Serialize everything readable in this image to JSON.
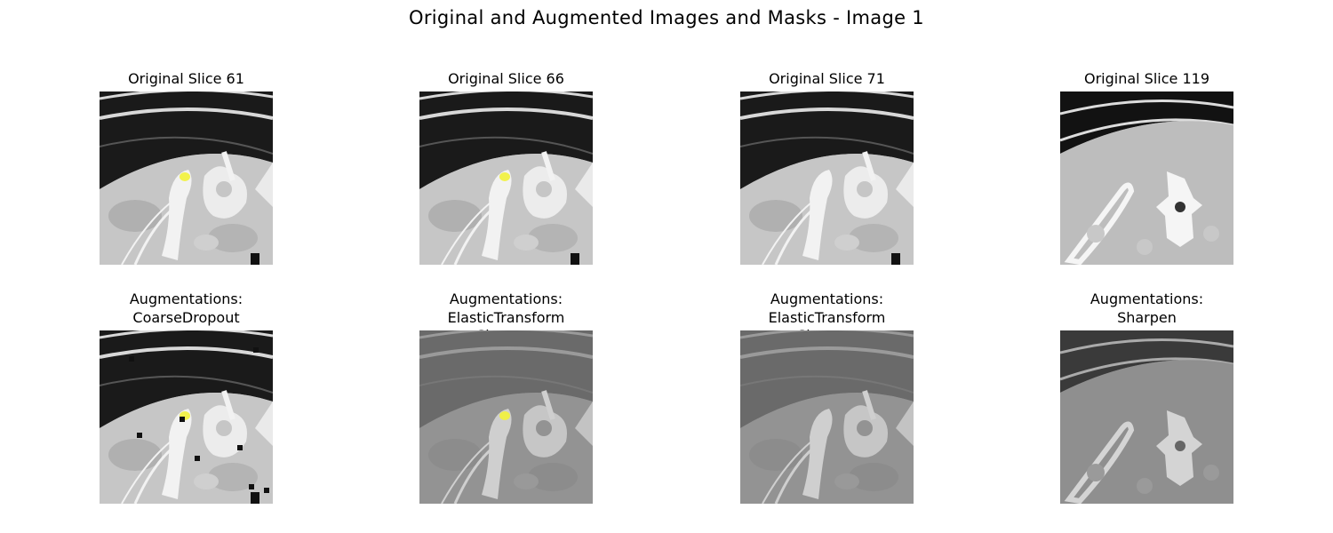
{
  "figure": {
    "title": "Original and Augmented Images and Masks - Image 1"
  },
  "colors": {
    "mask": "#f2f23a",
    "background": "#ffffff"
  },
  "panels": [
    {
      "title": "Original Slice 61",
      "row": "original",
      "variant": "bone",
      "mask": true,
      "dropout": false,
      "tone": "normal"
    },
    {
      "title": "Original Slice 66",
      "row": "original",
      "variant": "bone",
      "mask": true,
      "dropout": false,
      "tone": "normal"
    },
    {
      "title": "Original Slice 71",
      "row": "original",
      "variant": "bone",
      "mask": false,
      "dropout": false,
      "tone": "normal"
    },
    {
      "title": "Original Slice 119",
      "row": "original",
      "variant": "pelvis",
      "mask": false,
      "dropout": false,
      "tone": "normal"
    },
    {
      "title": "Augmentations:\nCoarseDropout",
      "row": "augmented",
      "variant": "bone",
      "mask": true,
      "dropout": true,
      "tone": "normal"
    },
    {
      "title": "Augmentations:\nElasticTransform\nSharpen",
      "row": "augmented",
      "variant": "bone",
      "mask": true,
      "dropout": false,
      "tone": "gray"
    },
    {
      "title": "Augmentations:\nElasticTransform\nSharpen",
      "row": "augmented",
      "variant": "bone",
      "mask": false,
      "dropout": false,
      "tone": "gray"
    },
    {
      "title": "Augmentations:\nSharpen",
      "row": "augmented",
      "variant": "pelvis",
      "mask": false,
      "dropout": false,
      "tone": "gray"
    }
  ]
}
